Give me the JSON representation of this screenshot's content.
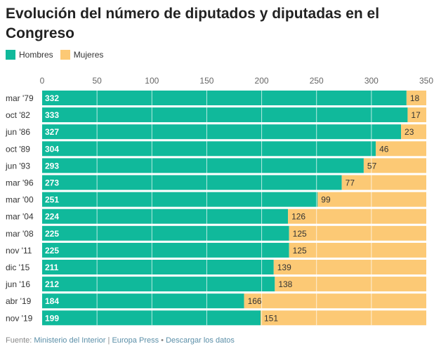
{
  "title": "Evolución del número de diputados y diputadas en el Congreso",
  "chart_data": {
    "type": "bar",
    "stacked": true,
    "orientation": "horizontal",
    "title": "Evolución del número de diputados y diputadas en el Congreso",
    "categories": [
      "mar '79",
      "oct '82",
      "jun '86",
      "oct '89",
      "jun '93",
      "mar '96",
      "mar '00",
      "mar '04",
      "mar '08",
      "nov '11",
      "dic '15",
      "jun '16",
      "abr '19",
      "nov '19"
    ],
    "series": [
      {
        "name": "Hombres",
        "color": "#10b99b",
        "values": [
          332,
          333,
          327,
          304,
          293,
          273,
          251,
          224,
          225,
          225,
          211,
          212,
          184,
          199
        ]
      },
      {
        "name": "Mujeres",
        "color": "#fcc975",
        "values": [
          18,
          17,
          23,
          46,
          57,
          77,
          99,
          126,
          125,
          125,
          139,
          138,
          166,
          151
        ]
      }
    ],
    "xlim": [
      0,
      350
    ],
    "xticks": [
      0,
      50,
      100,
      150,
      200,
      250,
      300,
      350
    ],
    "legend": "top-left",
    "grid": true
  },
  "footer": {
    "prefix": "Fuente: ",
    "source1": "Ministerio del Interior",
    "sep1": " | ",
    "source2": "Europa Press",
    "sep2": " • ",
    "download": "Descargar los datos"
  }
}
